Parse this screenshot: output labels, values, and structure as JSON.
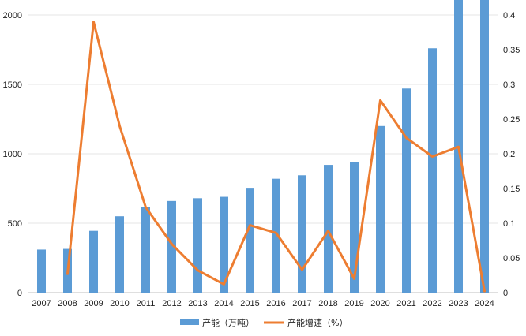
{
  "chart_data": {
    "type": "bar+line",
    "categories": [
      "2007",
      "2008",
      "2009",
      "2010",
      "2011",
      "2012",
      "2013",
      "2014",
      "2015",
      "2016",
      "2017",
      "2018",
      "2019",
      "2020",
      "2021",
      "2022",
      "2023",
      "2024"
    ],
    "series": [
      {
        "name": "产能（万吨）",
        "type": "bar",
        "axis": "left",
        "color": "#5B9BD5",
        "values": [
          310,
          315,
          445,
          550,
          615,
          660,
          680,
          690,
          755,
          820,
          845,
          920,
          940,
          1200,
          1470,
          1760,
          2130,
          2130
        ]
      },
      {
        "name": "产能增速（%）",
        "type": "line",
        "axis": "right",
        "color": "#ED7D31",
        "values": [
          null,
          0.027,
          0.39,
          0.24,
          0.123,
          0.07,
          0.032,
          0.012,
          0.097,
          0.086,
          0.033,
          0.089,
          0.02,
          0.277,
          0.223,
          0.196,
          0.21,
          0.002
        ]
      }
    ],
    "y_left": {
      "min": 0,
      "max": 2000,
      "ticks": [
        "0",
        "500",
        "1000",
        "1500",
        "2000"
      ],
      "tick_values": [
        0,
        500,
        1000,
        1500,
        2000
      ]
    },
    "y_right": {
      "min": 0,
      "max": 0.4,
      "ticks": [
        "0",
        "0.05",
        "0.1",
        "0.15",
        "0.2",
        "0.25",
        "0.3",
        "0.35",
        "0.4"
      ],
      "tick_values": [
        0,
        0.05,
        0.1,
        0.15,
        0.2,
        0.25,
        0.3,
        0.35,
        0.4
      ]
    },
    "grid": true,
    "legend": "bottom",
    "title": "",
    "xlabel": "",
    "ylabel": ""
  }
}
